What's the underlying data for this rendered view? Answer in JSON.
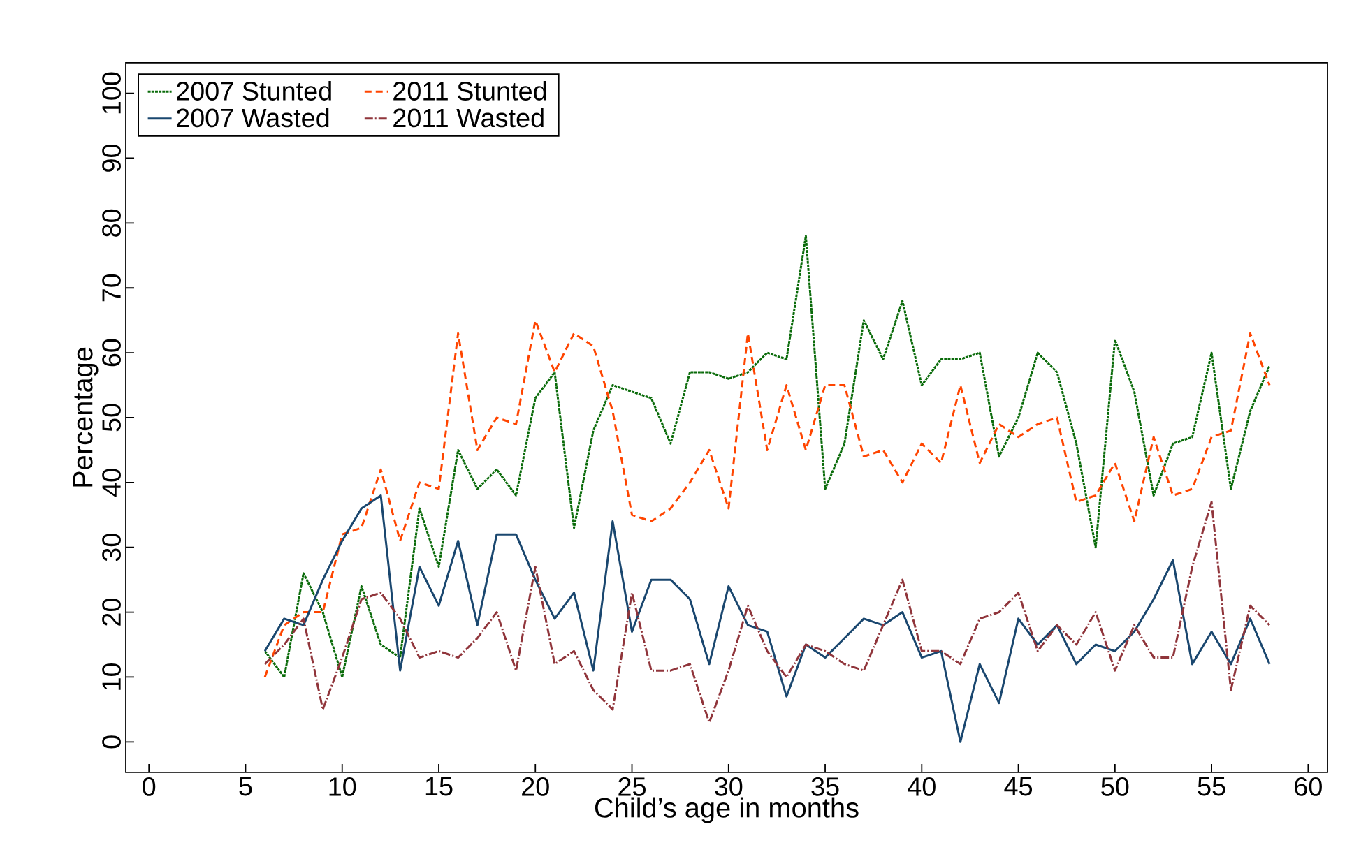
{
  "chart_data": {
    "type": "line",
    "xlabel": "Child’s age in months",
    "ylabel": "Percentage",
    "x": [
      6,
      7,
      8,
      9,
      10,
      11,
      12,
      13,
      14,
      15,
      16,
      17,
      18,
      19,
      20,
      21,
      22,
      23,
      24,
      25,
      26,
      27,
      28,
      29,
      30,
      31,
      32,
      33,
      34,
      35,
      36,
      37,
      38,
      39,
      40,
      41,
      42,
      43,
      44,
      45,
      46,
      47,
      48,
      49,
      50,
      51,
      52,
      53,
      54,
      55,
      56,
      57,
      58
    ],
    "xlim": [
      -1.2,
      61
    ],
    "ylim": [
      -4.7,
      104.7
    ],
    "xticks": [
      0,
      5,
      10,
      15,
      20,
      25,
      30,
      35,
      40,
      45,
      50,
      55,
      60
    ],
    "yticks": [
      0,
      10,
      20,
      30,
      40,
      50,
      60,
      70,
      80,
      90,
      100
    ],
    "legend": "top left",
    "grid": false,
    "marker": "none",
    "series": [
      {
        "name": "2007 Stunted",
        "color": "#0a6b0a",
        "line_style": "dotted",
        "values": [
          14,
          10,
          26,
          20,
          10,
          24,
          15,
          13,
          36,
          27,
          45,
          39,
          42,
          38,
          53,
          57,
          33,
          48,
          55,
          54,
          53,
          46,
          57,
          57,
          56,
          57,
          60,
          59,
          78,
          39,
          46,
          65,
          59,
          68,
          55,
          59,
          59,
          60,
          44,
          50,
          60,
          57,
          46,
          30,
          62,
          54,
          38,
          46,
          47,
          60,
          39,
          51,
          58
        ]
      },
      {
        "name": "2011 Stunted",
        "color": "#ff4500",
        "line_style": "dashed",
        "values": [
          10,
          18,
          20,
          20,
          32,
          33,
          42,
          31,
          40,
          39,
          63,
          45,
          50,
          49,
          65,
          57,
          63,
          61,
          51,
          35,
          34,
          36,
          40,
          45,
          36,
          63,
          45,
          55,
          45,
          55,
          55,
          44,
          45,
          40,
          46,
          43,
          55,
          43,
          49,
          47,
          49,
          50,
          37,
          38,
          43,
          34,
          47,
          38,
          39,
          47,
          48,
          63,
          55
        ]
      },
      {
        "name": "2007 Wasted",
        "color": "#1a476f",
        "line_style": "solid",
        "values": [
          14,
          19,
          18,
          25,
          31,
          36,
          38,
          11,
          27,
          21,
          31,
          18,
          32,
          32,
          25,
          19,
          23,
          11,
          34,
          17,
          25,
          25,
          22,
          12,
          24,
          18,
          17,
          7,
          15,
          13,
          16,
          19,
          18,
          20,
          13,
          14,
          0,
          12,
          6,
          19,
          15,
          18,
          12,
          15,
          14,
          17,
          22,
          28,
          12,
          17,
          12,
          19,
          12
        ]
      },
      {
        "name": "2011 Wasted",
        "color": "#90353b",
        "line_style": "dashdot",
        "values": [
          12,
          15,
          19,
          5,
          13,
          22,
          23,
          19,
          13,
          14,
          13,
          16,
          20,
          11,
          27,
          12,
          14,
          8,
          5,
          23,
          11,
          11,
          12,
          3,
          11,
          21,
          14,
          10,
          15,
          14,
          12,
          11,
          18,
          25,
          14,
          14,
          12,
          19,
          20,
          23,
          14,
          18,
          15,
          20,
          11,
          18,
          13,
          13,
          27,
          37,
          8,
          21,
          18
        ]
      }
    ]
  }
}
